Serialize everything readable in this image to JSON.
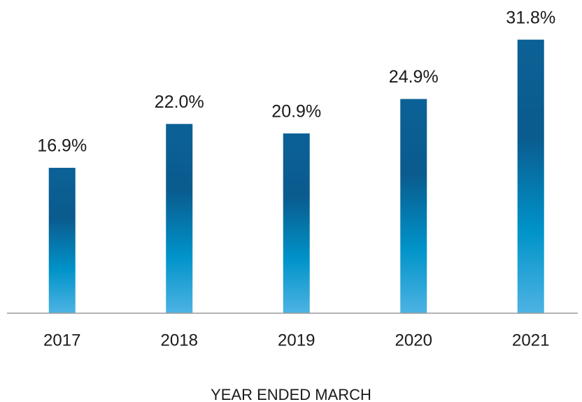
{
  "chart_data": {
    "type": "bar",
    "categories": [
      "2017",
      "2018",
      "2019",
      "2020",
      "2021"
    ],
    "values": [
      16.9,
      22.0,
      20.9,
      24.9,
      31.8
    ],
    "value_labels": [
      "16.9%",
      "22.0%",
      "20.9%",
      "24.9%",
      "31.8%"
    ],
    "x_label": "YEAR ENDED MARCH",
    "ylim": [
      0,
      36
    ],
    "grid": false
  }
}
